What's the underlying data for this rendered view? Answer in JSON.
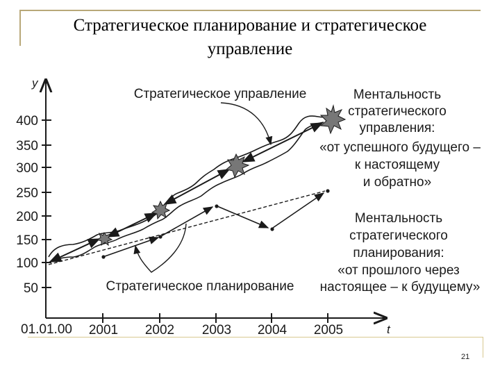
{
  "title_line1": "Стратегическое планирование и стратегическое",
  "title_line2": "управление",
  "page_number": "21",
  "colors": {
    "frame": "#b8a878",
    "ink": "#1a1a1a"
  },
  "axes": {
    "y_label": "y",
    "x_label": "t",
    "y_ticks": [
      "400",
      "350",
      "300",
      "250",
      "200",
      "150",
      "100",
      "50"
    ],
    "x_ticks": [
      "01.01.00",
      "2001",
      "2002",
      "2003",
      "2004",
      "2005"
    ]
  },
  "labels": {
    "strategic_management": "Стратегическое управление",
    "strategic_planning": "Стратегическое планирование",
    "management_mentality": [
      "Ментальность",
      "стратегического",
      "управления:",
      "«от успешного будущего –",
      "к настоящему",
      "и обратно»"
    ],
    "planning_mentality": [
      "Ментальность",
      "стратегического",
      "планирования:",
      "«от прошлого через",
      "настоящее – к будущему»"
    ]
  },
  "chart_data": {
    "type": "line",
    "x": [
      "01.01.00",
      "2001",
      "2002",
      "2003",
      "2004",
      "2005"
    ],
    "xlabel": "t",
    "ylabel": "y",
    "series": [
      {
        "name": "Стратегическое управление",
        "x": [
          "01.01.00",
          "2001",
          "2002",
          "2003",
          "2004",
          "2005"
        ],
        "values": [
          100,
          150,
          180,
          260,
          310,
          375
        ]
      },
      {
        "name": "Стратегическое планирование",
        "x": [
          "2001",
          "2002",
          "2003",
          "2004",
          "2005"
        ],
        "values": [
          105,
          150,
          220,
          172,
          250
        ]
      }
    ]
  }
}
